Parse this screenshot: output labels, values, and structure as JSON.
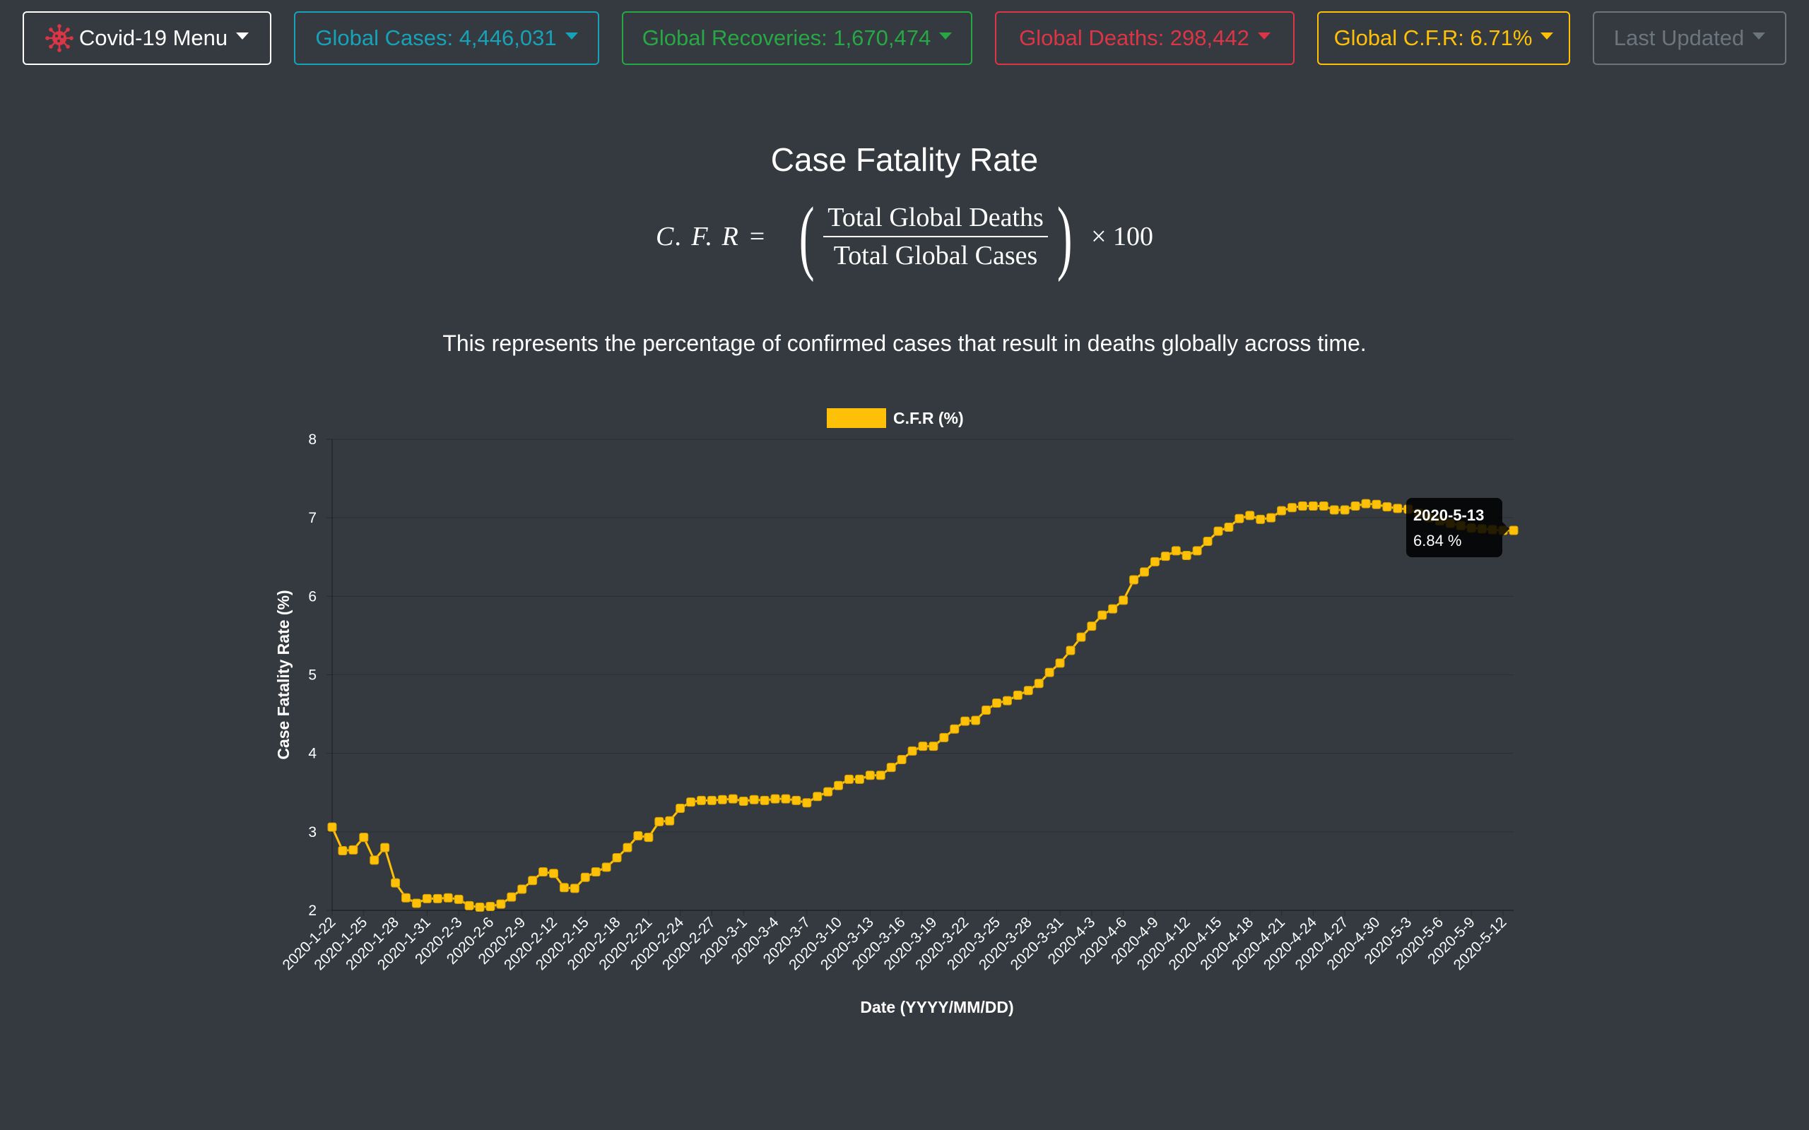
{
  "navbar": {
    "menu_label": "Covid-19 Menu",
    "cases_label": "Global Cases: 4,446,031",
    "recoveries_label": "Global Recoveries: 1,670,474",
    "deaths_label": "Global Deaths: 298,442",
    "cfr_label": "Global C.F.R: 6.71%",
    "updated_label": "Last Updated",
    "colors": {
      "menu": "#ffffff",
      "cases": "#17a2b8",
      "recoveries": "#28a745",
      "deaths": "#dc3545",
      "cfr": "#ffc107",
      "updated": "#6c757d",
      "virus_icon": "#dc3545"
    }
  },
  "page": {
    "title": "Case Fatality Rate",
    "formula_lhs": "C. F. R =",
    "formula_numerator": "Total Global Deaths",
    "formula_denominator": "Total Global Cases",
    "formula_multiplier": "× 100",
    "subtitle": "This represents the percentage of confirmed cases that result in deaths globally across time."
  },
  "chart_data": {
    "type": "line",
    "series_name": "C.F.R (%)",
    "xlabel": "Date (YYYY/MM/DD)",
    "ylabel": "Case Fatality Rate (%)",
    "ylim": [
      2,
      8
    ],
    "yticks": [
      2,
      3,
      4,
      5,
      6,
      7,
      8
    ],
    "grid": true,
    "legend_position": "top",
    "line_color": "#ffc107",
    "x_tick_labels": [
      "2020-1-22",
      "2020-1-25",
      "2020-1-28",
      "2020-1-31",
      "2020-2-3",
      "2020-2-6",
      "2020-2-9",
      "2020-2-12",
      "2020-2-15",
      "2020-2-18",
      "2020-2-21",
      "2020-2-24",
      "2020-2-27",
      "2020-3-1",
      "2020-3-4",
      "2020-3-7",
      "2020-3-10",
      "2020-3-13",
      "2020-3-16",
      "2020-3-19",
      "2020-3-22",
      "2020-3-25",
      "2020-3-28",
      "2020-3-31",
      "2020-4-3",
      "2020-4-6",
      "2020-4-9",
      "2020-4-12",
      "2020-4-15",
      "2020-4-18",
      "2020-4-21",
      "2020-4-24",
      "2020-4-27",
      "2020-4-30",
      "2020-5-3",
      "2020-5-6",
      "2020-5-9",
      "2020-5-12"
    ],
    "start_date": "2020-1-22",
    "end_date": "2020-5-13",
    "values": [
      3.06,
      2.76,
      2.77,
      2.93,
      2.64,
      2.8,
      2.35,
      2.16,
      2.09,
      2.15,
      2.15,
      2.16,
      2.14,
      2.06,
      2.04,
      2.05,
      2.08,
      2.17,
      2.27,
      2.38,
      2.49,
      2.47,
      2.29,
      2.28,
      2.42,
      2.49,
      2.55,
      2.67,
      2.8,
      2.95,
      2.93,
      3.13,
      3.14,
      3.3,
      3.38,
      3.4,
      3.4,
      3.41,
      3.42,
      3.39,
      3.41,
      3.4,
      3.42,
      3.42,
      3.4,
      3.37,
      3.45,
      3.51,
      3.59,
      3.67,
      3.67,
      3.72,
      3.72,
      3.82,
      3.92,
      4.03,
      4.09,
      4.09,
      4.2,
      4.31,
      4.41,
      4.42,
      4.55,
      4.64,
      4.67,
      4.74,
      4.8,
      4.89,
      5.03,
      5.15,
      5.31,
      5.48,
      5.62,
      5.76,
      5.84,
      5.95,
      6.21,
      6.31,
      6.44,
      6.51,
      6.58,
      6.52,
      6.58,
      6.7,
      6.83,
      6.88,
      6.99,
      7.03,
      6.98,
      7.0,
      7.09,
      7.13,
      7.15,
      7.15,
      7.15,
      7.1,
      7.1,
      7.15,
      7.18,
      7.17,
      7.14,
      7.12,
      7.11,
      7.06,
      7.0,
      6.96,
      6.93,
      6.9,
      6.87,
      6.86,
      6.85,
      6.84,
      6.84
    ],
    "tooltip": {
      "date": "2020-5-13",
      "value_text": "6.84 %"
    }
  }
}
